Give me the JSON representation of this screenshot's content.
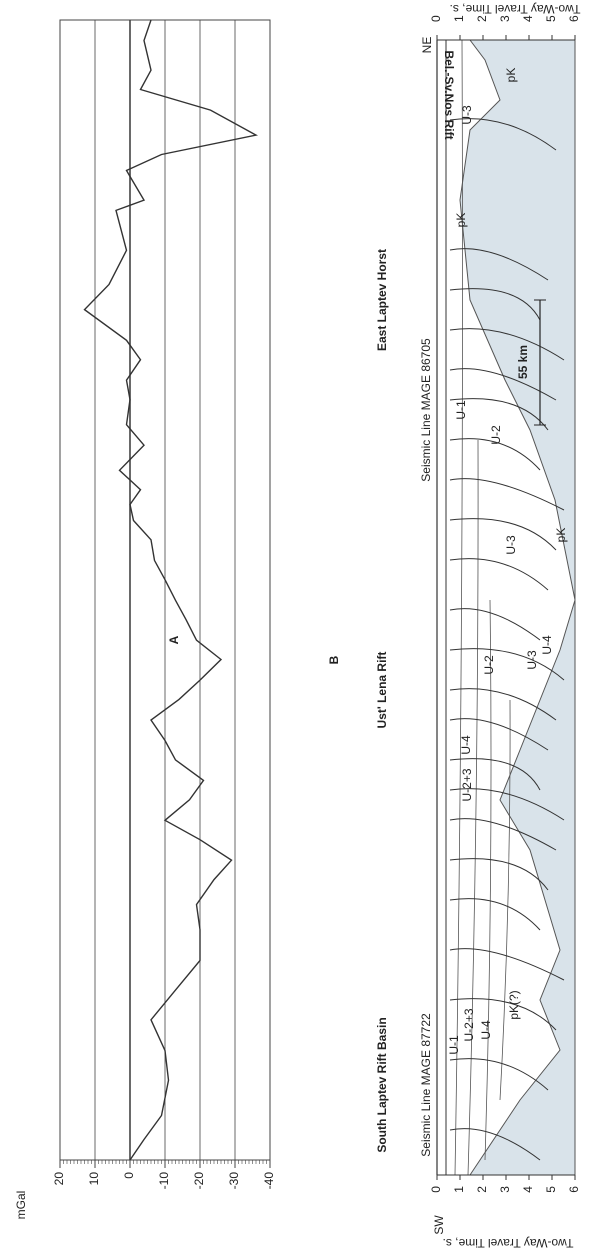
{
  "chart_data": [
    {
      "type": "line",
      "title": "A",
      "y_label": "mGal",
      "color": "#333333",
      "x": [
        0,
        1.8,
        3.9,
        7.0,
        9.6,
        12.3,
        14.9,
        17.5,
        20.2,
        22.4,
        24.6,
        26.3,
        28.1,
        29.8,
        31.6,
        33.3,
        35.1,
        36.8,
        38.6,
        40.4,
        42.1,
        43.9,
        45.6,
        47.4,
        49.1,
        50.9,
        52.6,
        54.4,
        56.1,
        57.5,
        58.8,
        60.5,
        62.7,
        64.5,
        66.7,
        68.4,
        70.2,
        71.9,
        74.6,
        76.8,
        79.8,
        83.3,
        84.2,
        86.8,
        88.2,
        89.9,
        92.1,
        93.9,
        95.6,
        98.2,
        100
      ],
      "values": [
        0,
        -4,
        -9,
        -11,
        -10,
        -6,
        -13,
        -20,
        -20,
        -19,
        -24,
        -29,
        -20,
        -10,
        -17,
        -21,
        -13,
        -10,
        -6,
        -14,
        -20,
        -26,
        -19,
        -16,
        -13,
        -10,
        -7,
        -6,
        -1,
        0,
        -3,
        3,
        -4,
        1,
        0,
        1,
        -3,
        1,
        13,
        6,
        1,
        4,
        -4,
        1,
        -9,
        -36,
        -23,
        -3,
        -6,
        -4,
        -6
      ],
      "xlim": [
        0,
        100
      ],
      "ylim": [
        -40,
        20
      ],
      "yticks": [
        20,
        10,
        0,
        -10,
        -20,
        -30,
        -40
      ],
      "grid": true
    },
    {
      "type": "section",
      "title": "B",
      "y_label": "Two-Way Travel Time, s.",
      "ylim": [
        0,
        6
      ],
      "yticks": [
        0,
        1,
        2,
        3,
        4,
        5,
        6
      ],
      "ends": [
        "SW",
        "NE"
      ],
      "regions": [
        "South Laptev Rift Basin",
        "Ust' Lena Rift",
        "East Laptev Horst",
        "Bel.-Sv.Nos Rift"
      ],
      "lines": [
        "Seismic Line MAGE 87722",
        "Seismic Line MAGE 86705"
      ],
      "scale_bar": "55 km",
      "units": [
        "U-1",
        "U-2+3",
        "U-4",
        "pK(?)",
        "U-2+3",
        "U-4",
        "U-2",
        "U-3",
        "U-4",
        "U-3",
        "pK",
        "U-2",
        "U-1",
        "pK",
        "U-3",
        "pK"
      ]
    }
  ]
}
